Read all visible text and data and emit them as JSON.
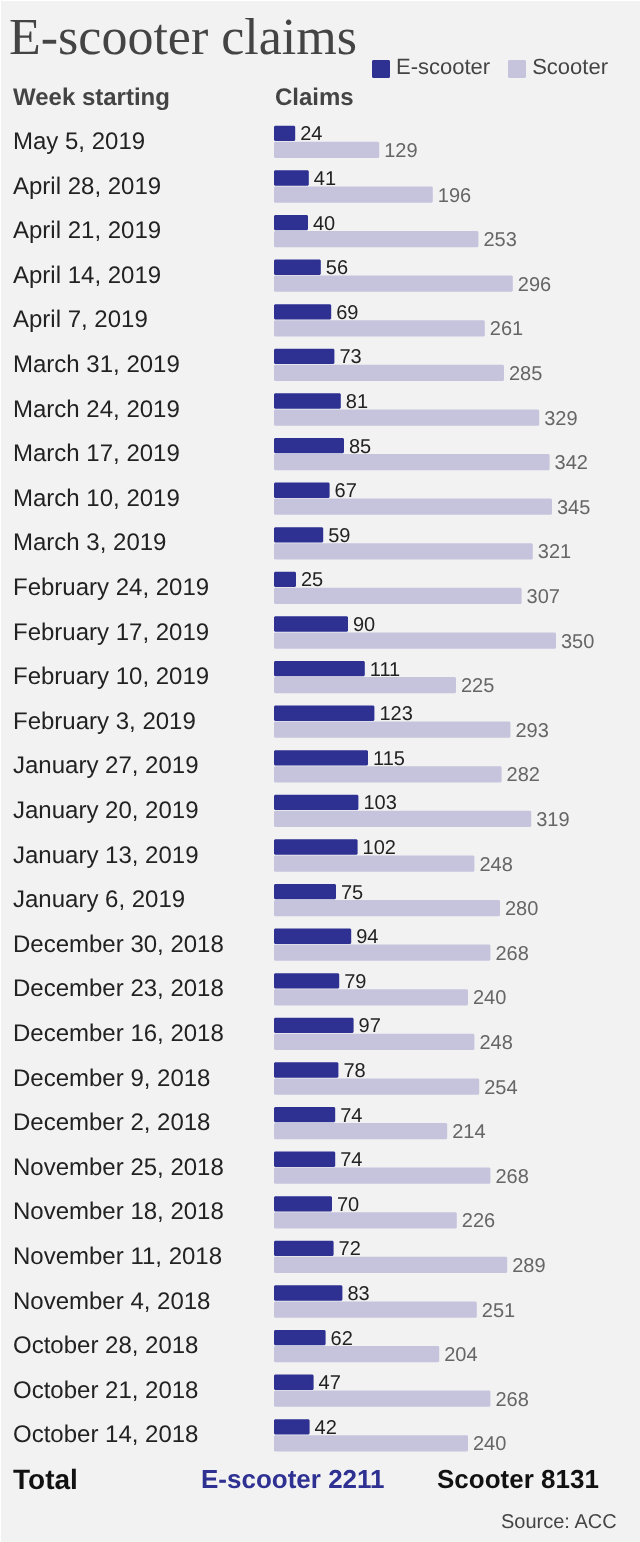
{
  "chart_data": {
    "type": "bar",
    "orientation": "horizontal",
    "title": "E-scooter claims",
    "ylabel": "Week starting",
    "xlabel": "Claims",
    "legend": "top right",
    "data_labels": true,
    "categories": [
      "May 5, 2019",
      "April 28, 2019",
      "April 21, 2019",
      "April 14, 2019",
      "April 7, 2019",
      "March 31, 2019",
      "March 24, 2019",
      "March 17, 2019",
      "March 10, 2019",
      "March 3, 2019",
      "February 24, 2019",
      "February 17, 2019",
      "February 10, 2019",
      "February 3, 2019",
      "January 27, 2019",
      "January 20, 2019",
      "January 13, 2019",
      "January 6, 2019",
      "December 30, 2018",
      "December 23, 2018",
      "December 16, 2018",
      "December 9, 2018",
      "December 2, 2018",
      "November 25, 2018",
      "November 18, 2018",
      "November 11, 2018",
      "November 4, 2018",
      "October 28, 2018",
      "October 21, 2018",
      "October 14, 2018"
    ],
    "series": [
      {
        "name": "E-scooter",
        "color": "#2e3192",
        "values": [
          24,
          41,
          40,
          56,
          69,
          73,
          81,
          85,
          67,
          59,
          25,
          90,
          111,
          123,
          115,
          103,
          102,
          75,
          94,
          79,
          97,
          78,
          74,
          74,
          70,
          72,
          83,
          62,
          47,
          42
        ]
      },
      {
        "name": "Scooter",
        "color": "#c6c4dd",
        "values": [
          129,
          196,
          253,
          296,
          261,
          285,
          329,
          342,
          345,
          321,
          307,
          350,
          225,
          293,
          282,
          319,
          248,
          280,
          268,
          240,
          248,
          254,
          214,
          268,
          226,
          289,
          251,
          204,
          268,
          240
        ]
      }
    ],
    "annotations": [
      "Total",
      "E-scooter 2211",
      "Scooter 8131",
      "Source: ACC"
    ]
  }
}
